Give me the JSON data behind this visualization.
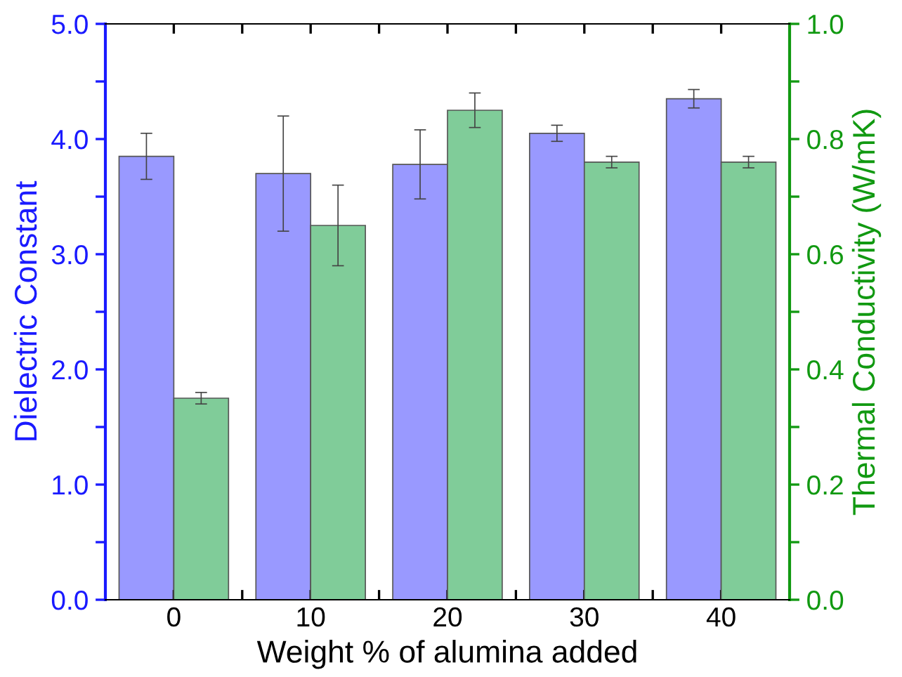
{
  "chart_data": {
    "type": "bar",
    "xlabel": "Weight % of alumina added",
    "ylabel": "Dielectric Constant",
    "y2label": "Thermal Conductivity (W/mK)",
    "x": [
      0,
      10,
      20,
      30,
      40
    ],
    "xlim": [
      -5,
      45
    ],
    "xticks": [
      0,
      {
        "value": 5,
        "label": null
      },
      10,
      {
        "value": 15,
        "label": null
      },
      20,
      {
        "value": 25,
        "label": null
      },
      30,
      {
        "value": 35,
        "label": null
      },
      40
    ],
    "ylim": [
      0,
      5
    ],
    "yticks": [
      {
        "value": 0,
        "label": "0.0"
      },
      {
        "value": 0.5,
        "label": null
      },
      {
        "value": 1,
        "label": "1.0"
      },
      {
        "value": 1.5,
        "label": null
      },
      {
        "value": 2,
        "label": "2.0"
      },
      {
        "value": 2.5,
        "label": null
      },
      {
        "value": 3,
        "label": "3.0"
      },
      {
        "value": 3.5,
        "label": null
      },
      {
        "value": 4,
        "label": "4.0"
      },
      {
        "value": 4.5,
        "label": null
      },
      {
        "value": 5,
        "label": "5.0"
      }
    ],
    "y2lim": [
      0,
      1
    ],
    "y2ticks": [
      {
        "value": 0,
        "label": "0.0"
      },
      {
        "value": 0.1,
        "label": null
      },
      0.2,
      {
        "value": 0.3,
        "label": null
      },
      0.4,
      {
        "value": 0.5,
        "label": null
      },
      0.6,
      {
        "value": 0.7,
        "label": null
      },
      0.8,
      {
        "value": 0.9,
        "label": null
      },
      {
        "value": 1,
        "label": "1.0"
      }
    ],
    "grid": false,
    "legend": false,
    "series": [
      {
        "color": "#9999ff",
        "values": [
          3.85,
          3.7,
          3.78,
          4.05,
          4.35
        ],
        "errors": [
          0.2,
          0.5,
          0.3,
          0.07,
          0.08
        ]
      },
      {
        "color": "#80cc99",
        "axis": "y2",
        "values": [
          0.35,
          0.65,
          0.85,
          0.76,
          0.76
        ],
        "errors": [
          0.01,
          0.07,
          0.03,
          0.01,
          0.01
        ]
      }
    ]
  }
}
